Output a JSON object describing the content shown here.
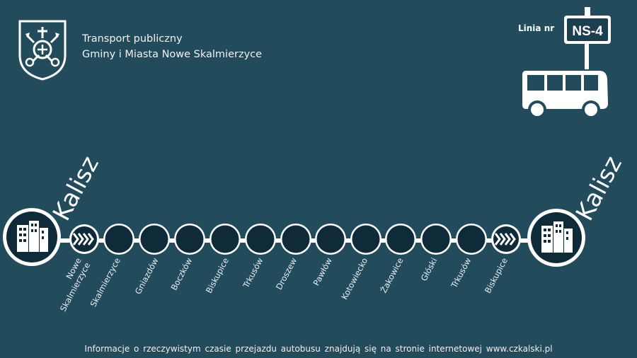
{
  "header": {
    "title_line1": "Transport publiczny",
    "title_line2": "Gminy i Miasta Nowe Skalmierzyce"
  },
  "line": {
    "label": "Linia nr",
    "number": "NS-4"
  },
  "route": {
    "start": "Kalisz",
    "end": "Kalisz",
    "stops": [
      {
        "line1": "Nowe",
        "line2": "Skalmierzyce"
      },
      {
        "line1": "Skalmierzyce"
      },
      {
        "line1": "Gniazdów"
      },
      {
        "line1": "Boczków"
      },
      {
        "line1": "Biskupice"
      },
      {
        "line1": "Trkusów"
      },
      {
        "line1": "Droszew"
      },
      {
        "line1": "Pawłów"
      },
      {
        "line1": "Kotowiecko"
      },
      {
        "line1": "Żakowice"
      },
      {
        "line1": "Głóski"
      },
      {
        "line1": "Trkusów"
      },
      {
        "line1": "Biskupice"
      }
    ]
  },
  "footer": {
    "text": "Informacje o rzeczywistym czasie przejazdu autobusu znajdują się na stronie internetowej www.czkalski.pl"
  },
  "colors": {
    "background": "#224b5c",
    "stop_fill": "#0f2a38",
    "line": "#ffffff"
  }
}
